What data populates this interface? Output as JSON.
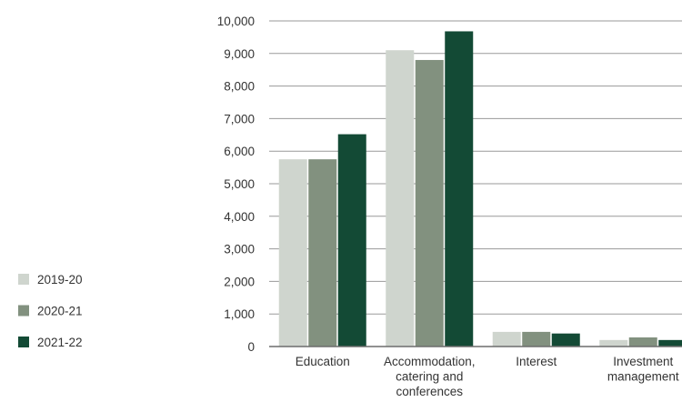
{
  "chart_data": {
    "type": "bar",
    "categories": [
      "Education",
      "Accommodation, catering and conferences",
      "Interest",
      "Investment management"
    ],
    "category_label_lines": [
      [
        "Education"
      ],
      [
        "Accommodation,",
        "catering and",
        "conferences"
      ],
      [
        "Interest"
      ],
      [
        "Investment",
        "management"
      ]
    ],
    "series": [
      {
        "name": "2019-20",
        "values": [
          5750,
          9100,
          450,
          200
        ],
        "color": "#cfd5ce"
      },
      {
        "name": "2020-21",
        "values": [
          5750,
          8800,
          450,
          280
        ],
        "color": "#82917f"
      },
      {
        "name": "2021-22",
        "values": [
          6520,
          9680,
          400,
          200
        ],
        "color": "#134a35"
      }
    ],
    "ylim": [
      0,
      10000
    ],
    "yticks": [
      0,
      1000,
      2000,
      3000,
      4000,
      5000,
      6000,
      7000,
      8000,
      9000,
      10000
    ],
    "ytick_labels": [
      "0",
      "1,000",
      "2,000",
      "3,000",
      "4,000",
      "5,000",
      "6,000",
      "7,000",
      "8,000",
      "9,000",
      "10,000"
    ],
    "grid": true,
    "legend_position": "left",
    "title": "",
    "xlabel": "",
    "ylabel": "",
    "gridline_color": "#9a9a9a",
    "axis_color": "#6d6d6d"
  }
}
